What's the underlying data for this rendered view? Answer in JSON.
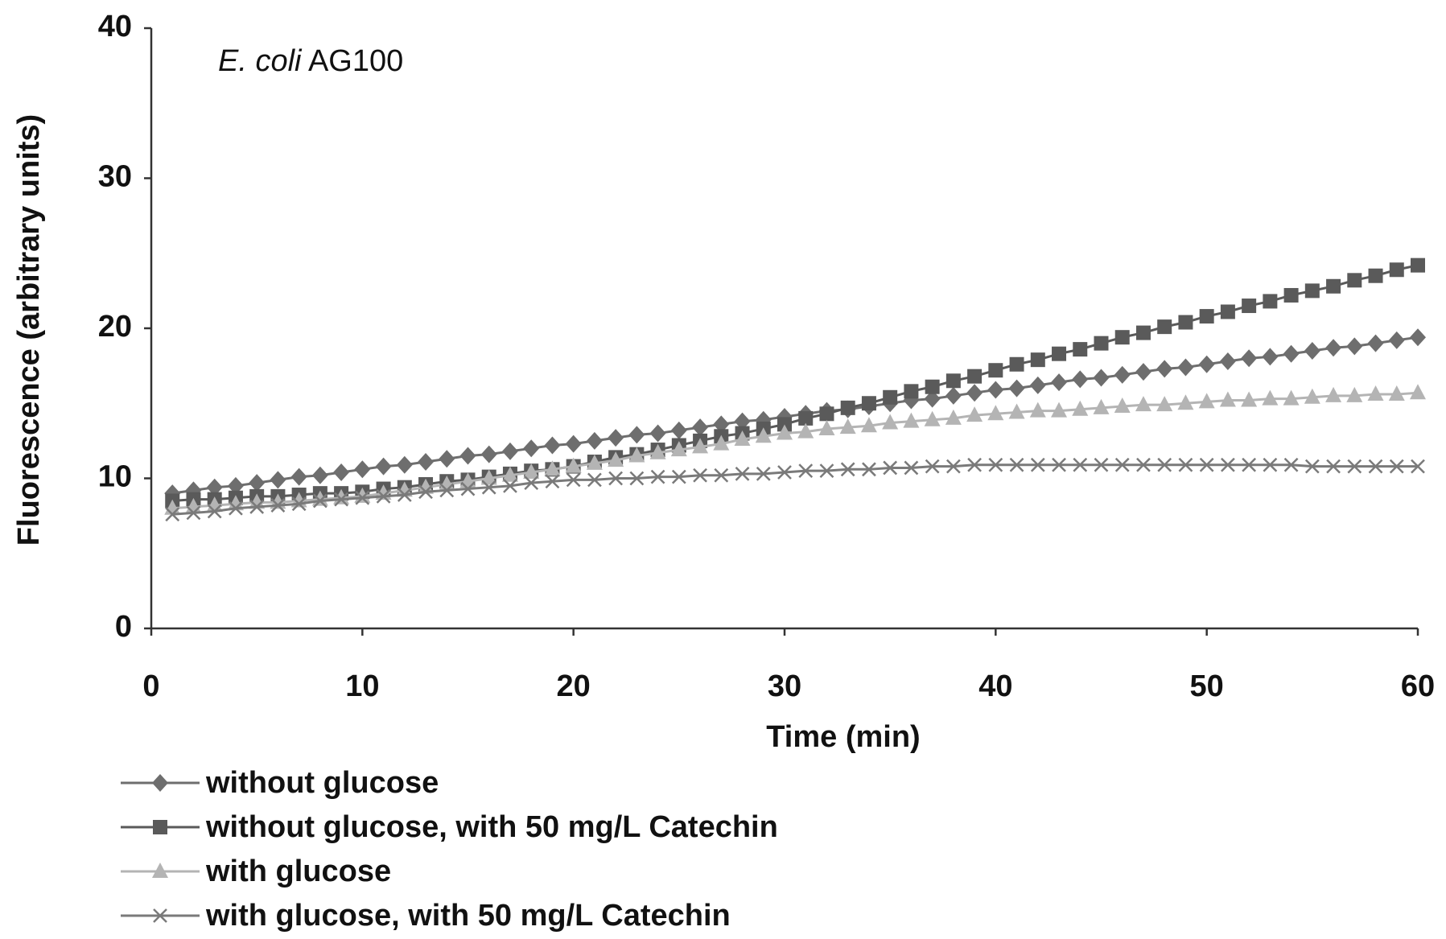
{
  "chart_data": {
    "type": "line",
    "annotation_italic": "E. coli",
    "annotation": "AG100",
    "xlabel": "Time (min)",
    "ylabel": "Fluorescence  (arbitrary units)",
    "xlim": [
      0,
      60
    ],
    "xticks": [
      0,
      10,
      20,
      30,
      40,
      50,
      60
    ],
    "ylim": [
      0,
      40
    ],
    "yticks": [
      0,
      10,
      20,
      30,
      40
    ],
    "x": [
      1,
      2,
      3,
      4,
      5,
      6,
      7,
      8,
      9,
      10,
      11,
      12,
      13,
      14,
      15,
      16,
      17,
      18,
      19,
      20,
      21,
      22,
      23,
      24,
      25,
      26,
      27,
      28,
      29,
      30,
      31,
      32,
      33,
      34,
      35,
      36,
      37,
      38,
      39,
      40,
      41,
      42,
      43,
      44,
      45,
      46,
      47,
      48,
      49,
      50,
      51,
      52,
      53,
      54,
      55,
      56,
      57,
      58,
      59,
      60
    ],
    "series": [
      {
        "name": "without glucose",
        "color": "#6e6e6e",
        "marker": "diamond",
        "values": [
          9.0,
          9.2,
          9.4,
          9.5,
          9.7,
          9.9,
          10.1,
          10.2,
          10.4,
          10.6,
          10.8,
          10.9,
          11.1,
          11.3,
          11.5,
          11.6,
          11.8,
          12.0,
          12.2,
          12.3,
          12.5,
          12.7,
          12.9,
          13.0,
          13.2,
          13.4,
          13.6,
          13.8,
          13.9,
          14.1,
          14.3,
          14.5,
          14.6,
          14.8,
          15.0,
          15.2,
          15.3,
          15.5,
          15.7,
          15.9,
          16.0,
          16.2,
          16.4,
          16.6,
          16.7,
          16.9,
          17.1,
          17.3,
          17.4,
          17.6,
          17.8,
          18.0,
          18.1,
          18.3,
          18.5,
          18.7,
          18.8,
          19.0,
          19.2,
          19.4
        ]
      },
      {
        "name": "without glucose, with 50 mg/L Catechin",
        "color": "#5a5a5a",
        "marker": "square",
        "values": [
          8.5,
          8.6,
          8.6,
          8.7,
          8.8,
          8.8,
          8.9,
          9.0,
          9.0,
          9.1,
          9.3,
          9.4,
          9.6,
          9.8,
          9.9,
          10.1,
          10.3,
          10.5,
          10.6,
          10.8,
          11.1,
          11.4,
          11.6,
          11.9,
          12.2,
          12.5,
          12.8,
          13.0,
          13.3,
          13.6,
          14.0,
          14.3,
          14.7,
          15.0,
          15.4,
          15.8,
          16.1,
          16.5,
          16.8,
          17.2,
          17.6,
          17.9,
          18.3,
          18.6,
          19.0,
          19.4,
          19.7,
          20.1,
          20.4,
          20.8,
          21.1,
          21.5,
          21.8,
          22.2,
          22.5,
          22.8,
          23.2,
          23.5,
          23.9,
          24.2
        ]
      },
      {
        "name": "with glucose",
        "color": "#b4b4b4",
        "marker": "triangle",
        "values": [
          8.0,
          8.1,
          8.2,
          8.3,
          8.4,
          8.4,
          8.5,
          8.6,
          8.7,
          8.8,
          9.0,
          9.2,
          9.4,
          9.6,
          9.8,
          10.0,
          10.2,
          10.4,
          10.6,
          10.8,
          11.0,
          11.2,
          11.5,
          11.7,
          11.9,
          12.1,
          12.3,
          12.6,
          12.8,
          13.0,
          13.1,
          13.3,
          13.4,
          13.5,
          13.7,
          13.8,
          13.9,
          14.0,
          14.2,
          14.3,
          14.4,
          14.5,
          14.5,
          14.6,
          14.7,
          14.8,
          14.9,
          14.9,
          15.0,
          15.1,
          15.2,
          15.2,
          15.3,
          15.3,
          15.4,
          15.5,
          15.5,
          15.6,
          15.6,
          15.7
        ]
      },
      {
        "name": "with glucose, with 50 mg/L Catechin",
        "color": "#7a7a7a",
        "marker": "cross",
        "values": [
          7.6,
          7.7,
          7.8,
          8.0,
          8.1,
          8.2,
          8.3,
          8.5,
          8.6,
          8.7,
          8.8,
          8.9,
          9.1,
          9.2,
          9.3,
          9.4,
          9.5,
          9.7,
          9.8,
          9.9,
          9.9,
          10.0,
          10.0,
          10.1,
          10.1,
          10.2,
          10.2,
          10.3,
          10.3,
          10.4,
          10.5,
          10.5,
          10.6,
          10.6,
          10.7,
          10.7,
          10.8,
          10.8,
          10.9,
          10.9,
          10.9,
          10.9,
          10.9,
          10.9,
          10.9,
          10.9,
          10.9,
          10.9,
          10.9,
          10.9,
          10.9,
          10.9,
          10.9,
          10.9,
          10.8,
          10.8,
          10.8,
          10.8,
          10.8,
          10.8
        ]
      }
    ]
  }
}
